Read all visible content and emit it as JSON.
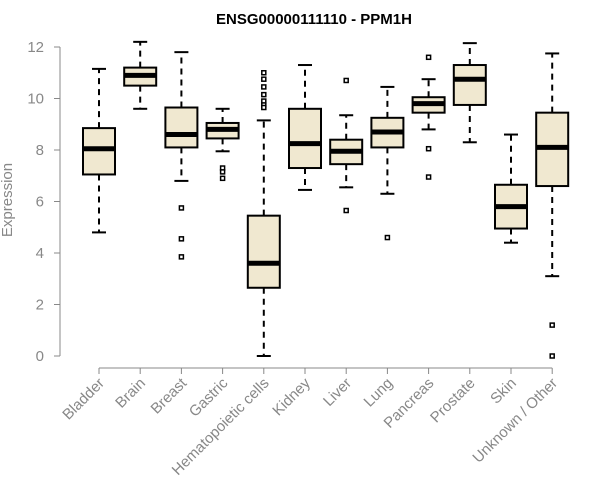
{
  "chart_data": {
    "type": "box",
    "title": "ENSG00000111110 - PPM1H",
    "ylabel": "Expression",
    "xlabel": "",
    "ylim": [
      0,
      12
    ],
    "yticks": [
      0,
      2,
      4,
      6,
      8,
      10,
      12
    ],
    "grid": false,
    "colors": {
      "box_fill": "#f0e8d0",
      "box_stroke": "#000000",
      "axis": "#888888"
    },
    "categories": [
      "Bladder",
      "Brain",
      "Breast",
      "Gastric",
      "Hematopoietic cells",
      "Kidney",
      "Liver",
      "Lung",
      "Pancreas",
      "Prostate",
      "Skin",
      "Unknown / Other"
    ],
    "boxes": [
      {
        "category": "Bladder",
        "whisker_low": 4.8,
        "q1": 7.05,
        "median": 8.05,
        "q3": 8.85,
        "whisker_high": 11.15,
        "outliers": []
      },
      {
        "category": "Brain",
        "whisker_low": 9.6,
        "q1": 10.5,
        "median": 10.9,
        "q3": 11.2,
        "whisker_high": 12.2,
        "outliers": []
      },
      {
        "category": "Breast",
        "whisker_low": 6.8,
        "q1": 8.1,
        "median": 8.6,
        "q3": 9.65,
        "whisker_high": 11.8,
        "outliers": [
          5.75,
          4.55,
          3.85
        ]
      },
      {
        "category": "Gastric",
        "whisker_low": 7.95,
        "q1": 8.45,
        "median": 8.8,
        "q3": 9.05,
        "whisker_high": 9.6,
        "outliers": [
          7.3,
          7.15,
          6.9
        ]
      },
      {
        "category": "Hematopoietic cells",
        "whisker_low": 0.0,
        "q1": 2.65,
        "median": 3.6,
        "q3": 5.45,
        "whisker_high": 9.15,
        "outliers": [
          11.0,
          10.75,
          10.45,
          10.15,
          9.9,
          9.75,
          9.65
        ]
      },
      {
        "category": "Kidney",
        "whisker_low": 6.45,
        "q1": 7.3,
        "median": 8.25,
        "q3": 9.6,
        "whisker_high": 11.3,
        "outliers": []
      },
      {
        "category": "Liver",
        "whisker_low": 6.55,
        "q1": 7.45,
        "median": 7.95,
        "q3": 8.4,
        "whisker_high": 9.35,
        "outliers": [
          10.7,
          5.65
        ]
      },
      {
        "category": "Lung",
        "whisker_low": 6.3,
        "q1": 8.1,
        "median": 8.7,
        "q3": 9.25,
        "whisker_high": 10.45,
        "outliers": [
          4.6
        ]
      },
      {
        "category": "Pancreas",
        "whisker_low": 8.8,
        "q1": 9.45,
        "median": 9.8,
        "q3": 10.05,
        "whisker_high": 10.75,
        "outliers": [
          11.6,
          8.05,
          6.95
        ]
      },
      {
        "category": "Prostate",
        "whisker_low": 8.3,
        "q1": 9.75,
        "median": 10.75,
        "q3": 11.3,
        "whisker_high": 12.15,
        "outliers": []
      },
      {
        "category": "Skin",
        "whisker_low": 4.4,
        "q1": 4.95,
        "median": 5.8,
        "q3": 6.65,
        "whisker_high": 8.6,
        "outliers": []
      },
      {
        "category": "Unknown / Other",
        "whisker_low": 3.1,
        "q1": 6.6,
        "median": 8.1,
        "q3": 9.45,
        "whisker_high": 11.75,
        "outliers": [
          1.2,
          0.0
        ]
      }
    ]
  }
}
